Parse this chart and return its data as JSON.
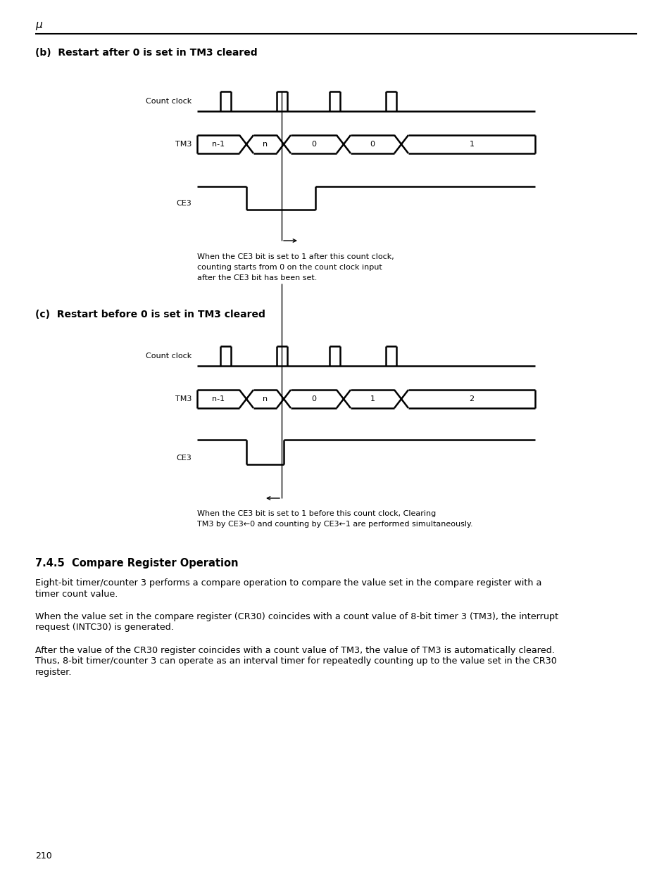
{
  "page_number": "210",
  "mu_symbol": "μ",
  "section_b_title": "(b)  Restart after 0 is set in TM3 cleared",
  "section_c_title": "(c)  Restart before 0 is set in TM3 cleared",
  "section_745_title": "7.4.5  Compare Register Operation",
  "para1_line1": "Eight-bit timer/counter 3 performs a compare operation to compare the value set in the compare register with a",
  "para1_line2": "timer count value.",
  "para2_line1": "When the value set in the compare register (CR30) coincides with a count value of 8-bit timer 3 (TM3), the interrupt",
  "para2_line2": "request (INTC30) is generated.",
  "para3_line1": "After the value of the CR30 register coincides with a count value of TM3, the value of TM3 is automatically cleared.",
  "para3_line2": "Thus, 8-bit timer/counter 3 can operate as an interval timer for repeatedly counting up to the value set in the CR30",
  "para3_line3": "register.",
  "annotation_b_line1": "When the CE3 bit is set to 1 after this count clock,",
  "annotation_b_line2": "counting starts from 0 on the count clock input",
  "annotation_b_line3": "after the CE3 bit has been set.",
  "annotation_c_line1": "When the CE3 bit is set to 1 before this count clock, Clearing",
  "annotation_c_line2": "TM3 by CE3←0 and counting by CE3←1 are performed simultaneously.",
  "label_count_clock": "Count clock",
  "label_tm3": "TM3",
  "label_ce3": "CE3",
  "tm3_labels_b": [
    "n-1",
    "n",
    "0",
    "0",
    "1"
  ],
  "tm3_labels_c": [
    "n-1",
    "n",
    "0",
    "1",
    "2"
  ],
  "bg_color": "#ffffff",
  "line_color": "#000000"
}
